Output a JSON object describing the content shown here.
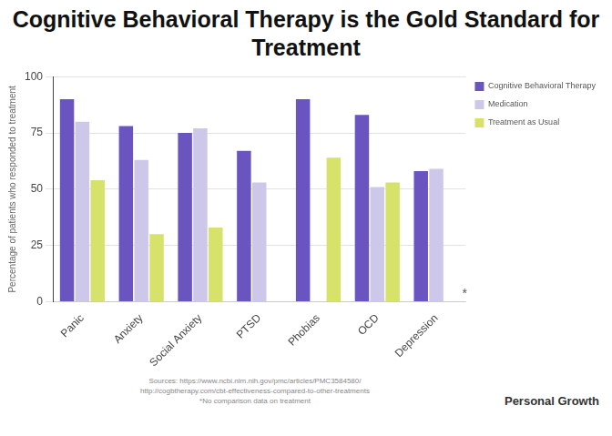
{
  "chart_data": {
    "type": "bar",
    "title": "Cognitive Behavioral Therapy is the Gold Standard for Treatment",
    "y_label": "Percentage of patients who responded to treatment",
    "categories": [
      "Panic",
      "Anxiety",
      "Social Anxiety",
      "PTSD",
      "Phobias",
      "OCD",
      "Depression"
    ],
    "series": [
      {
        "name": "Cognitive Behavioral Therapy",
        "color": "#6a54c0",
        "values": [
          90,
          78,
          75,
          67,
          90,
          83,
          58
        ]
      },
      {
        "name": "Medication",
        "color": "#cdc8ea",
        "values": [
          80,
          63,
          77,
          53,
          null,
          51,
          59
        ]
      },
      {
        "name": "Treatment as Usual",
        "color": "#d6e26a",
        "values": [
          54,
          30,
          33,
          null,
          64,
          53,
          null
        ]
      }
    ],
    "ylim": [
      0,
      100
    ],
    "yticks": [
      0,
      25,
      50,
      75,
      100
    ],
    "grid": true,
    "legend": "right",
    "annotations": [
      "*"
    ],
    "source": [
      "Sources: https://www.ncbi.nlm.nih.gov/pmc/articles/PMC3584580/",
      "http://cogbtherapy.com/cbt-effectiveness-compared-to-other-treatments",
      "*No comparison data on treatment"
    ],
    "footer": "Personal Growth"
  }
}
